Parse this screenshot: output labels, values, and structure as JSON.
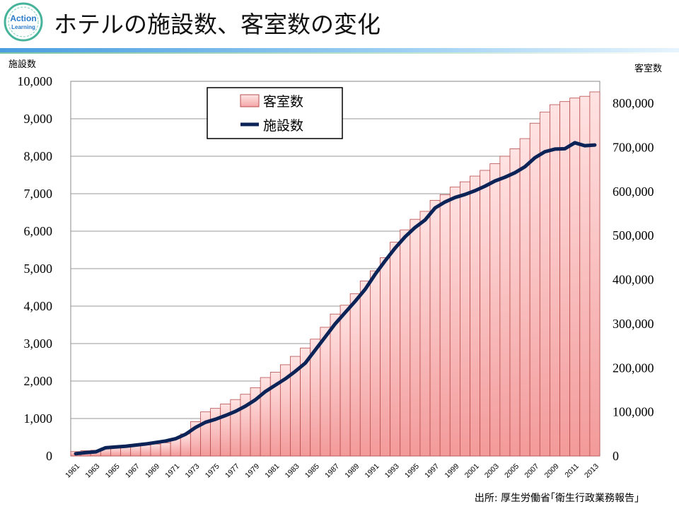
{
  "header": {
    "title": "ホテルの施設数、客室数の変化",
    "logo_line1": "Action",
    "logo_line2": "Learning"
  },
  "source": "出所: 厚生労働省｢衛生行政業務報告｣",
  "colors": {
    "bar_fill_top": "#ffe3e3",
    "bar_fill_bottom": "#f39a9a",
    "bar_stroke": "#b84d4d",
    "line": "#0c2357",
    "grid": "#999999",
    "accent": "#2a7ac9"
  },
  "chart_data": {
    "type": "bar+line",
    "title": "ホテルの施設数、客室数の変化",
    "left_axis_label": "施設数",
    "right_axis_label": "客室数",
    "left_ylim": [
      0,
      10000
    ],
    "right_ylim": [
      0,
      850000
    ],
    "left_ticks": [
      "0",
      "1,000",
      "2,000",
      "3,000",
      "4,000",
      "5,000",
      "6,000",
      "7,000",
      "8,000",
      "9,000",
      "10,000"
    ],
    "left_tick_values": [
      0,
      1000,
      2000,
      3000,
      4000,
      5000,
      6000,
      7000,
      8000,
      9000,
      10000
    ],
    "right_ticks": [
      "0",
      "100,000",
      "200,000",
      "300,000",
      "400,000",
      "500,000",
      "600,000",
      "700,000",
      "800,000"
    ],
    "right_tick_values": [
      0,
      100000,
      200000,
      300000,
      400000,
      500000,
      600000,
      700000,
      800000
    ],
    "x_tick_labels": [
      "1961",
      "1963",
      "1965",
      "1967",
      "1969",
      "1971",
      "1973",
      "1975",
      "1977",
      "1979",
      "1981",
      "1983",
      "1985",
      "1987",
      "1989",
      "1991",
      "1993",
      "1995",
      "1997",
      "1999",
      "2001",
      "2003",
      "2005",
      "2007",
      "2009",
      "2011",
      "2013"
    ],
    "years": [
      1961,
      1962,
      1963,
      1964,
      1965,
      1966,
      1967,
      1968,
      1969,
      1970,
      1971,
      1972,
      1973,
      1974,
      1975,
      1976,
      1977,
      1978,
      1979,
      1980,
      1981,
      1982,
      1983,
      1984,
      1985,
      1986,
      1987,
      1988,
      1989,
      1990,
      1991,
      1992,
      1993,
      1994,
      1995,
      1996,
      1997,
      1998,
      1999,
      2000,
      2001,
      2002,
      2003,
      2004,
      2005,
      2006,
      2007,
      2008,
      2009,
      2010,
      2011,
      2012,
      2013
    ],
    "legend": {
      "bars": "客室数",
      "line": "施設数",
      "position": "top-center"
    },
    "series": [
      {
        "name": "客室数",
        "type": "bar",
        "axis": "right",
        "values": [
          10000,
          12000,
          13000,
          18000,
          20000,
          21000,
          23000,
          25000,
          27000,
          30000,
          40000,
          50000,
          78000,
          100000,
          108000,
          118000,
          128000,
          140000,
          155000,
          178000,
          190000,
          207000,
          226000,
          245000,
          265000,
          292000,
          322000,
          342000,
          368000,
          397000,
          420000,
          450000,
          485000,
          513000,
          537000,
          555000,
          580000,
          593000,
          610000,
          622000,
          635000,
          648000,
          663000,
          680000,
          697000,
          720000,
          755000,
          780000,
          797000,
          804000,
          812000,
          816000,
          826000
        ]
      },
      {
        "name": "施設数",
        "type": "line",
        "axis": "left",
        "values": [
          60,
          90,
          110,
          220,
          240,
          260,
          290,
          320,
          360,
          400,
          460,
          580,
          760,
          900,
          980,
          1080,
          1190,
          1330,
          1500,
          1720,
          1890,
          2060,
          2260,
          2480,
          2830,
          3180,
          3530,
          3830,
          4130,
          4450,
          4850,
          5210,
          5550,
          5850,
          6100,
          6300,
          6620,
          6780,
          6900,
          6980,
          7080,
          7200,
          7340,
          7440,
          7560,
          7720,
          7960,
          8120,
          8190,
          8200,
          8360,
          8280,
          8300
        ]
      }
    ]
  }
}
